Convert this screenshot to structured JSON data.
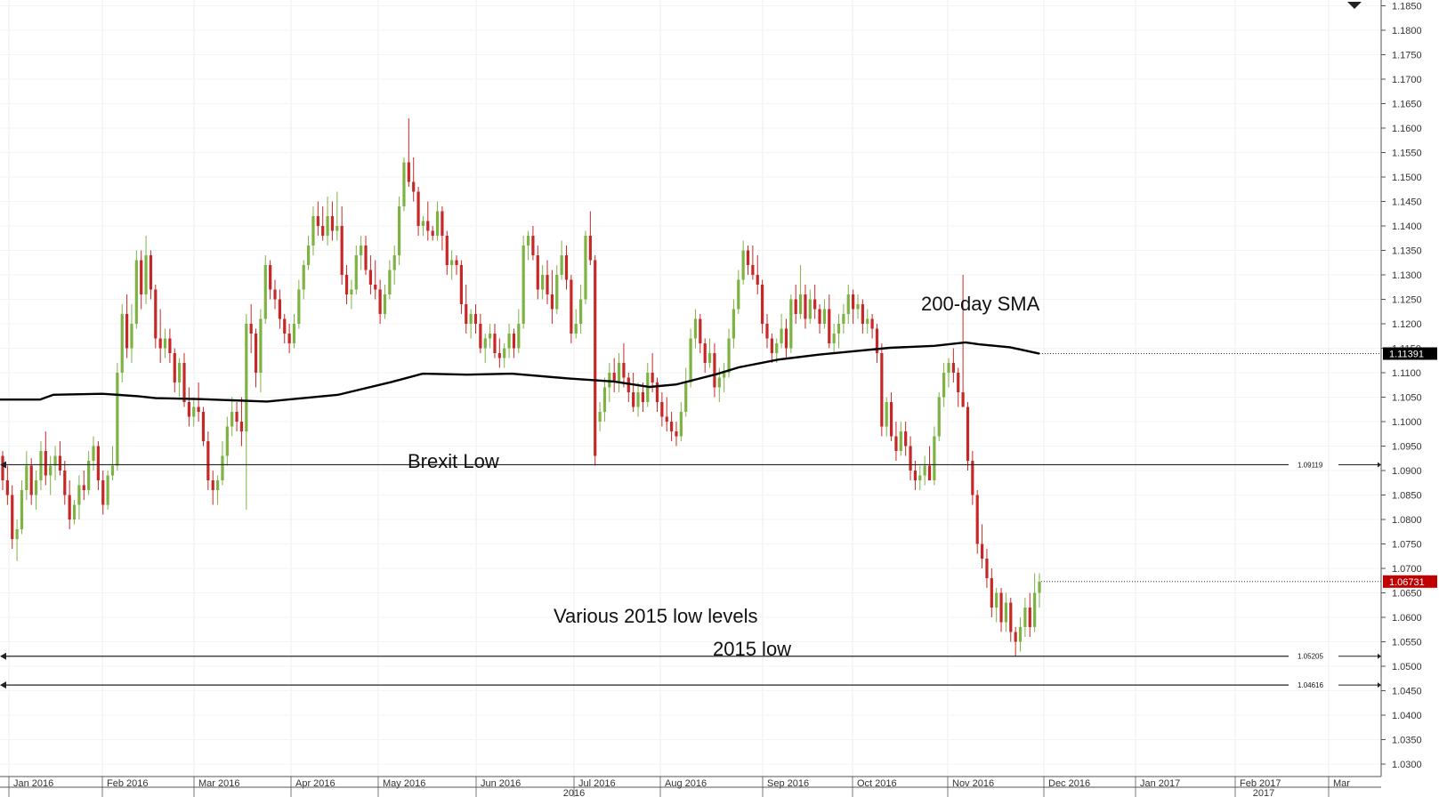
{
  "chart_data": {
    "type": "candlestick",
    "instrument": "EUR/USD daily",
    "ylim": [
      1.0275,
      1.186
    ],
    "y_ticks": [
      "1.0300",
      "1.0350",
      "1.0400",
      "1.0450",
      "1.0500",
      "1.0550",
      "1.0600",
      "1.0650",
      "1.0700",
      "1.0750",
      "1.0800",
      "1.0850",
      "1.0900",
      "1.0950",
      "1.1000",
      "1.1050",
      "1.1100",
      "1.1150",
      "1.1200",
      "1.1250",
      "1.1300",
      "1.1350",
      "1.1400",
      "1.1450",
      "1.1500",
      "1.1550",
      "1.1600",
      "1.1650",
      "1.1700",
      "1.1750",
      "1.1800",
      "1.1850"
    ],
    "x_month_labels": [
      "Jan 2016",
      "Feb 2016",
      "Mar 2016",
      "Apr 2016",
      "May 2016",
      "Jun 2016",
      "Jul 2016",
      "Aug 2016",
      "Sep 2016",
      "Oct 2016",
      "Nov 2016",
      "Dec 2016",
      "Jan 2017",
      "Feb 2017",
      "Mar"
    ],
    "x_year_labels": [
      "2016",
      "2017"
    ],
    "up_color": "#7cb342",
    "down_color": "#c62828",
    "sma_color": "#000000",
    "candles": [
      [
        1.093,
        1.094,
        1.086,
        1.088
      ],
      [
        1.088,
        1.091,
        1.083,
        1.085
      ],
      [
        1.085,
        1.087,
        1.074,
        1.076
      ],
      [
        1.076,
        1.08,
        1.0715,
        1.078
      ],
      [
        1.078,
        1.088,
        1.077,
        1.086
      ],
      [
        1.086,
        1.094,
        1.084,
        1.091
      ],
      [
        1.091,
        1.0925,
        1.083,
        1.085
      ],
      [
        1.085,
        1.09,
        1.082,
        1.088
      ],
      [
        1.088,
        1.096,
        1.086,
        1.094
      ],
      [
        1.094,
        1.098,
        1.087,
        1.089
      ],
      [
        1.089,
        1.093,
        1.085,
        1.091
      ],
      [
        1.091,
        1.095,
        1.088,
        1.093
      ],
      [
        1.093,
        1.096,
        1.089,
        1.09
      ],
      [
        1.09,
        1.092,
        1.083,
        1.085
      ],
      [
        1.085,
        1.088,
        1.078,
        1.08
      ],
      [
        1.08,
        1.084,
        1.079,
        1.083
      ],
      [
        1.083,
        1.089,
        1.08,
        1.087
      ],
      [
        1.087,
        1.09,
        1.084,
        1.086
      ],
      [
        1.086,
        1.094,
        1.085,
        1.092
      ],
      [
        1.092,
        1.097,
        1.09,
        1.095
      ],
      [
        1.095,
        1.096,
        1.086,
        1.088
      ],
      [
        1.088,
        1.09,
        1.081,
        1.083
      ],
      [
        1.083,
        1.09,
        1.082,
        1.089
      ],
      [
        1.089,
        1.095,
        1.088,
        1.091
      ],
      [
        1.091,
        1.112,
        1.09,
        1.11
      ],
      [
        1.11,
        1.124,
        1.108,
        1.122
      ],
      [
        1.122,
        1.126,
        1.113,
        1.115
      ],
      [
        1.115,
        1.124,
        1.112,
        1.12
      ],
      [
        1.12,
        1.135,
        1.119,
        1.133
      ],
      [
        1.133,
        1.135,
        1.123,
        1.126
      ],
      [
        1.126,
        1.138,
        1.124,
        1.134
      ],
      [
        1.134,
        1.135,
        1.125,
        1.127
      ],
      [
        1.127,
        1.128,
        1.115,
        1.117
      ],
      [
        1.117,
        1.123,
        1.112,
        1.115
      ],
      [
        1.115,
        1.119,
        1.113,
        1.117
      ],
      [
        1.117,
        1.119,
        1.112,
        1.114
      ],
      [
        1.114,
        1.115,
        1.106,
        1.108
      ],
      [
        1.108,
        1.113,
        1.105,
        1.112
      ],
      [
        1.112,
        1.114,
        1.103,
        1.104
      ],
      [
        1.104,
        1.107,
        1.099,
        1.101
      ],
      [
        1.101,
        1.105,
        1.099,
        1.103
      ],
      [
        1.103,
        1.108,
        1.1,
        1.102
      ],
      [
        1.102,
        1.103,
        1.095,
        1.096
      ],
      [
        1.096,
        1.098,
        1.086,
        1.088
      ],
      [
        1.088,
        1.09,
        1.083,
        1.086
      ],
      [
        1.086,
        1.089,
        1.083,
        1.088
      ],
      [
        1.088,
        1.096,
        1.087,
        1.093
      ],
      [
        1.093,
        1.101,
        1.091,
        1.099
      ],
      [
        1.099,
        1.105,
        1.097,
        1.102
      ],
      [
        1.102,
        1.104,
        1.098,
        1.1
      ],
      [
        1.1,
        1.105,
        1.095,
        1.098
      ],
      [
        1.098,
        1.122,
        1.082,
        1.12
      ],
      [
        1.12,
        1.124,
        1.114,
        1.118
      ],
      [
        1.118,
        1.119,
        1.107,
        1.11
      ],
      [
        1.11,
        1.123,
        1.106,
        1.121
      ],
      [
        1.121,
        1.134,
        1.12,
        1.132
      ],
      [
        1.132,
        1.133,
        1.125,
        1.127
      ],
      [
        1.127,
        1.129,
        1.123,
        1.125
      ],
      [
        1.125,
        1.127,
        1.119,
        1.121
      ],
      [
        1.121,
        1.122,
        1.116,
        1.118
      ],
      [
        1.118,
        1.12,
        1.114,
        1.116
      ],
      [
        1.116,
        1.122,
        1.115,
        1.12
      ],
      [
        1.12,
        1.129,
        1.119,
        1.127
      ],
      [
        1.127,
        1.133,
        1.125,
        1.132
      ],
      [
        1.132,
        1.138,
        1.131,
        1.136
      ],
      [
        1.136,
        1.144,
        1.134,
        1.142
      ],
      [
        1.142,
        1.145,
        1.138,
        1.14
      ],
      [
        1.14,
        1.144,
        1.137,
        1.138
      ],
      [
        1.138,
        1.146,
        1.136,
        1.142
      ],
      [
        1.142,
        1.145,
        1.137,
        1.139
      ],
      [
        1.139,
        1.147,
        1.137,
        1.14
      ],
      [
        1.14,
        1.144,
        1.128,
        1.13
      ],
      [
        1.13,
        1.132,
        1.124,
        1.126
      ],
      [
        1.126,
        1.129,
        1.123,
        1.127
      ],
      [
        1.127,
        1.136,
        1.126,
        1.134
      ],
      [
        1.134,
        1.138,
        1.131,
        1.136
      ],
      [
        1.136,
        1.138,
        1.13,
        1.131
      ],
      [
        1.131,
        1.134,
        1.126,
        1.128
      ],
      [
        1.128,
        1.133,
        1.125,
        1.127
      ],
      [
        1.127,
        1.129,
        1.12,
        1.122
      ],
      [
        1.122,
        1.128,
        1.121,
        1.126
      ],
      [
        1.126,
        1.133,
        1.125,
        1.131
      ],
      [
        1.131,
        1.136,
        1.128,
        1.134
      ],
      [
        1.134,
        1.146,
        1.132,
        1.144
      ],
      [
        1.144,
        1.154,
        1.143,
        1.153
      ],
      [
        1.153,
        1.162,
        1.148,
        1.149
      ],
      [
        1.149,
        1.154,
        1.145,
        1.147
      ],
      [
        1.147,
        1.148,
        1.138,
        1.14
      ],
      [
        1.14,
        1.142,
        1.138,
        1.141
      ],
      [
        1.141,
        1.145,
        1.137,
        1.139
      ],
      [
        1.139,
        1.14,
        1.137,
        1.138
      ],
      [
        1.138,
        1.145,
        1.137,
        1.143
      ],
      [
        1.143,
        1.144,
        1.135,
        1.138
      ],
      [
        1.138,
        1.139,
        1.13,
        1.132
      ],
      [
        1.132,
        1.135,
        1.129,
        1.133
      ],
      [
        1.133,
        1.134,
        1.13,
        1.132
      ],
      [
        1.132,
        1.133,
        1.122,
        1.124
      ],
      [
        1.124,
        1.128,
        1.118,
        1.12
      ],
      [
        1.12,
        1.123,
        1.117,
        1.122
      ],
      [
        1.122,
        1.124,
        1.118,
        1.12
      ],
      [
        1.12,
        1.122,
        1.114,
        1.115
      ],
      [
        1.115,
        1.118,
        1.112,
        1.117
      ],
      [
        1.117,
        1.12,
        1.115,
        1.118
      ],
      [
        1.118,
        1.12,
        1.113,
        1.114
      ],
      [
        1.114,
        1.117,
        1.111,
        1.113
      ],
      [
        1.113,
        1.116,
        1.111,
        1.115
      ],
      [
        1.115,
        1.12,
        1.113,
        1.118
      ],
      [
        1.118,
        1.119,
        1.113,
        1.115
      ],
      [
        1.115,
        1.123,
        1.114,
        1.12
      ],
      [
        1.12,
        1.138,
        1.119,
        1.136
      ],
      [
        1.136,
        1.139,
        1.133,
        1.138
      ],
      [
        1.138,
        1.14,
        1.133,
        1.134
      ],
      [
        1.134,
        1.136,
        1.125,
        1.127
      ],
      [
        1.127,
        1.132,
        1.125,
        1.13
      ],
      [
        1.13,
        1.133,
        1.124,
        1.126
      ],
      [
        1.126,
        1.131,
        1.12,
        1.123
      ],
      [
        1.123,
        1.132,
        1.122,
        1.13
      ],
      [
        1.13,
        1.137,
        1.129,
        1.134
      ],
      [
        1.134,
        1.136,
        1.127,
        1.129
      ],
      [
        1.129,
        1.13,
        1.116,
        1.118
      ],
      [
        1.118,
        1.123,
        1.117,
        1.12
      ],
      [
        1.12,
        1.128,
        1.118,
        1.125
      ],
      [
        1.125,
        1.139,
        1.124,
        1.138
      ],
      [
        1.138,
        1.143,
        1.132,
        1.133
      ],
      [
        1.133,
        1.134,
        1.091,
        1.093
      ],
      [
        1.1,
        1.104,
        1.098,
        1.102
      ],
      [
        1.102,
        1.109,
        1.1,
        1.107
      ],
      [
        1.107,
        1.112,
        1.104,
        1.11
      ],
      [
        1.11,
        1.113,
        1.106,
        1.108
      ],
      [
        1.108,
        1.114,
        1.106,
        1.112
      ],
      [
        1.112,
        1.116,
        1.107,
        1.109
      ],
      [
        1.109,
        1.11,
        1.104,
        1.106
      ],
      [
        1.106,
        1.11,
        1.102,
        1.103
      ],
      [
        1.103,
        1.108,
        1.101,
        1.106
      ],
      [
        1.106,
        1.108,
        1.102,
        1.104
      ],
      [
        1.104,
        1.112,
        1.103,
        1.11
      ],
      [
        1.11,
        1.114,
        1.106,
        1.108
      ],
      [
        1.108,
        1.109,
        1.102,
        1.104
      ],
      [
        1.104,
        1.106,
        1.099,
        1.101
      ],
      [
        1.101,
        1.105,
        1.098,
        1.1
      ],
      [
        1.1,
        1.102,
        1.096,
        1.098
      ],
      [
        1.098,
        1.1,
        1.095,
        1.097
      ],
      [
        1.097,
        1.104,
        1.096,
        1.102
      ],
      [
        1.102,
        1.111,
        1.101,
        1.108
      ],
      [
        1.108,
        1.119,
        1.107,
        1.117
      ],
      [
        1.117,
        1.123,
        1.115,
        1.121
      ],
      [
        1.121,
        1.122,
        1.114,
        1.116
      ],
      [
        1.116,
        1.117,
        1.11,
        1.112
      ],
      [
        1.112,
        1.117,
        1.111,
        1.114
      ],
      [
        1.114,
        1.116,
        1.105,
        1.107
      ],
      [
        1.107,
        1.111,
        1.104,
        1.109
      ],
      [
        1.109,
        1.112,
        1.106,
        1.11
      ],
      [
        1.11,
        1.119,
        1.109,
        1.117
      ],
      [
        1.117,
        1.125,
        1.115,
        1.123
      ],
      [
        1.123,
        1.131,
        1.122,
        1.129
      ],
      [
        1.129,
        1.137,
        1.128,
        1.135
      ],
      [
        1.135,
        1.136,
        1.13,
        1.132
      ],
      [
        1.132,
        1.136,
        1.129,
        1.13
      ],
      [
        1.13,
        1.134,
        1.126,
        1.128
      ],
      [
        1.128,
        1.129,
        1.118,
        1.12
      ],
      [
        1.12,
        1.122,
        1.115,
        1.117
      ],
      [
        1.117,
        1.118,
        1.112,
        1.114
      ],
      [
        1.114,
        1.117,
        1.112,
        1.116
      ],
      [
        1.116,
        1.122,
        1.115,
        1.119
      ],
      [
        1.119,
        1.121,
        1.113,
        1.115
      ],
      [
        1.115,
        1.126,
        1.114,
        1.125
      ],
      [
        1.125,
        1.128,
        1.12,
        1.122
      ],
      [
        1.122,
        1.132,
        1.121,
        1.126
      ],
      [
        1.126,
        1.128,
        1.119,
        1.121
      ],
      [
        1.121,
        1.127,
        1.12,
        1.125
      ],
      [
        1.125,
        1.128,
        1.121,
        1.123
      ],
      [
        1.123,
        1.124,
        1.118,
        1.12
      ],
      [
        1.12,
        1.125,
        1.119,
        1.123
      ],
      [
        1.123,
        1.126,
        1.115,
        1.116
      ],
      [
        1.116,
        1.12,
        1.114,
        1.118
      ],
      [
        1.118,
        1.122,
        1.115,
        1.12
      ],
      [
        1.12,
        1.124,
        1.118,
        1.122
      ],
      [
        1.122,
        1.128,
        1.12,
        1.126
      ],
      [
        1.126,
        1.127,
        1.12,
        1.123
      ],
      [
        1.123,
        1.126,
        1.121,
        1.124
      ],
      [
        1.124,
        1.125,
        1.118,
        1.12
      ],
      [
        1.12,
        1.123,
        1.118,
        1.121
      ],
      [
        1.121,
        1.122,
        1.117,
        1.119
      ],
      [
        1.119,
        1.12,
        1.112,
        1.114
      ],
      [
        1.114,
        1.116,
        1.097,
        1.099
      ],
      [
        1.099,
        1.105,
        1.097,
        1.104
      ],
      [
        1.104,
        1.106,
        1.096,
        1.097
      ],
      [
        1.097,
        1.1,
        1.092,
        1.094
      ],
      [
        1.094,
        1.1,
        1.093,
        1.098
      ],
      [
        1.098,
        1.1,
        1.093,
        1.095
      ],
      [
        1.095,
        1.097,
        1.088,
        1.09
      ],
      [
        1.09,
        1.092,
        1.086,
        1.088
      ],
      [
        1.088,
        1.091,
        1.086,
        1.089
      ],
      [
        1.089,
        1.093,
        1.087,
        1.091
      ],
      [
        1.091,
        1.095,
        1.089,
        1.088
      ],
      [
        1.088,
        1.099,
        1.087,
        1.097
      ],
      [
        1.097,
        1.106,
        1.096,
        1.105
      ],
      [
        1.105,
        1.112,
        1.103,
        1.11
      ],
      [
        1.11,
        1.113,
        1.107,
        1.112
      ],
      [
        1.112,
        1.115,
        1.108,
        1.11
      ],
      [
        1.11,
        1.111,
        1.103,
        1.106
      ],
      [
        1.106,
        1.13,
        1.104,
        1.103
      ],
      [
        1.103,
        1.104,
        1.09,
        1.092
      ],
      [
        1.092,
        1.094,
        1.083,
        1.085
      ],
      [
        1.085,
        1.086,
        1.073,
        1.075
      ],
      [
        1.075,
        1.079,
        1.07,
        1.072
      ],
      [
        1.072,
        1.074,
        1.066,
        1.068
      ],
      [
        1.068,
        1.07,
        1.06,
        1.062
      ],
      [
        1.062,
        1.066,
        1.059,
        1.065
      ],
      [
        1.065,
        1.066,
        1.057,
        1.059
      ],
      [
        1.059,
        1.065,
        1.057,
        1.063
      ],
      [
        1.063,
        1.064,
        1.055,
        1.057
      ],
      [
        1.057,
        1.058,
        1.052,
        1.055
      ],
      [
        1.055,
        1.06,
        1.053,
        1.058
      ],
      [
        1.058,
        1.064,
        1.056,
        1.062
      ],
      [
        1.062,
        1.065,
        1.056,
        1.058
      ],
      [
        1.058,
        1.069,
        1.057,
        1.065
      ],
      [
        1.065,
        1.069,
        1.062,
        1.0673
      ]
    ],
    "sma_200": [
      [
        0,
        1.1045
      ],
      [
        45,
        1.1045
      ],
      [
        60,
        1.1055
      ],
      [
        115,
        1.1057
      ],
      [
        155,
        1.1052
      ],
      [
        175,
        1.1048
      ],
      [
        225,
        1.1046
      ],
      [
        300,
        1.1041
      ],
      [
        380,
        1.1055
      ],
      [
        440,
        1.1081
      ],
      [
        475,
        1.1098
      ],
      [
        525,
        1.1096
      ],
      [
        575,
        1.1098
      ],
      [
        640,
        1.1088
      ],
      [
        690,
        1.1082
      ],
      [
        730,
        1.1071
      ],
      [
        760,
        1.1076
      ],
      [
        805,
        1.1097
      ],
      [
        830,
        1.1111
      ],
      [
        875,
        1.1127
      ],
      [
        920,
        1.1137
      ],
      [
        960,
        1.1144
      ],
      [
        1000,
        1.1151
      ],
      [
        1050,
        1.1155
      ],
      [
        1085,
        1.1162
      ],
      [
        1100,
        1.1158
      ],
      [
        1135,
        1.1152
      ],
      [
        1168,
        1.1139
      ]
    ],
    "levels": [
      {
        "name": "Brexit Low",
        "value": 1.09119,
        "label": "1.09119"
      },
      {
        "name": "Various 2015 low levels",
        "value": 1.05205,
        "label": "1.05205"
      },
      {
        "name": "2015 low",
        "value": 1.04616,
        "label": "1.04616"
      }
    ],
    "annotations": {
      "sma": "200-day SMA",
      "brexit": "Brexit Low",
      "various": "Various 2015 low levels",
      "low2015": "2015 low"
    },
    "current_price": {
      "label": "1.06731",
      "value": 1.06731,
      "color": "#c00000"
    },
    "sma_last": {
      "label": "1.11391",
      "value": 1.11391,
      "color": "#000000"
    }
  }
}
